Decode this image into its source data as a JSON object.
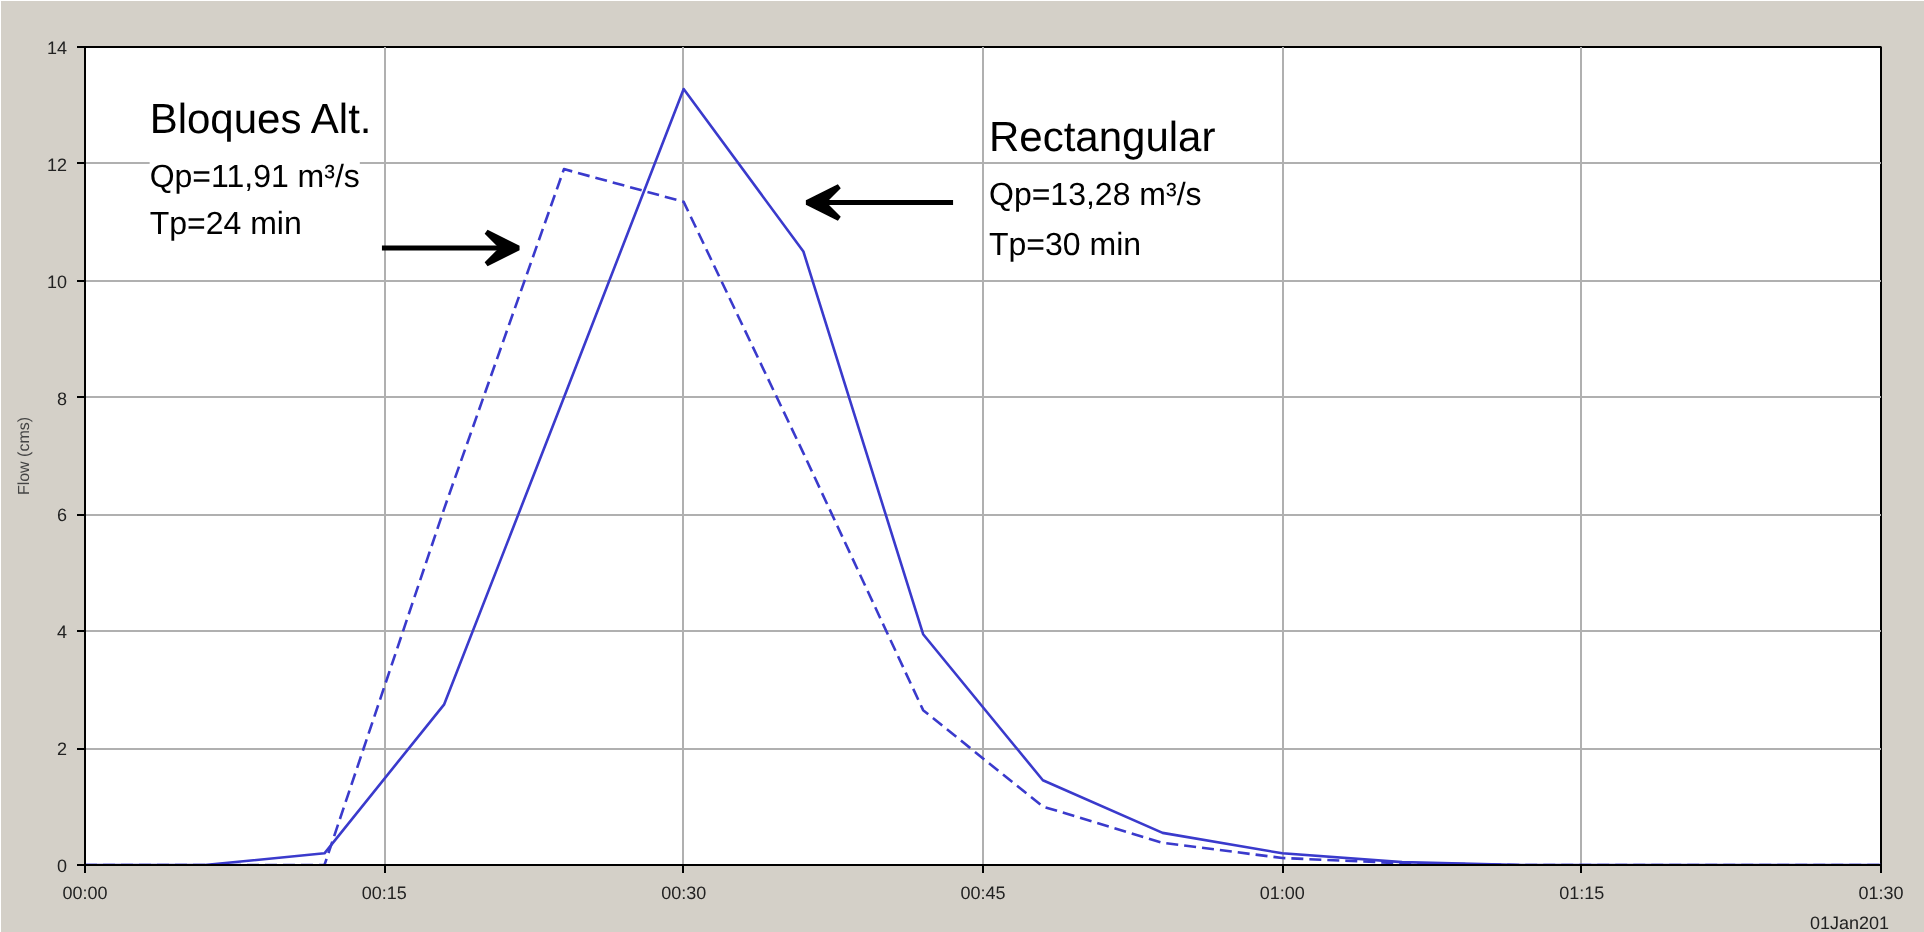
{
  "chart_data": {
    "type": "line",
    "ylabel": "Flow (cms)",
    "x": [
      0,
      0.1,
      0.2,
      0.3,
      0.4,
      0.5,
      0.6,
      0.7,
      0.8,
      0.9,
      1.0,
      1.1,
      1.2,
      1.3,
      1.4,
      1.5
    ],
    "series": [
      {
        "color": "#3a3acc",
        "line_style": "dashed",
        "values": [
          0,
          0,
          0,
          6.1,
          11.91,
          11.35,
          7.05,
          2.65,
          1.0,
          0.38,
          0.12,
          0.03,
          0,
          0,
          0,
          0
        ]
      },
      {
        "color": "#3a3acc",
        "line_style": "solid",
        "values": [
          0,
          0,
          0.2,
          2.75,
          8.0,
          13.28,
          10.5,
          3.95,
          1.45,
          0.55,
          0.2,
          0.05,
          0,
          0,
          0,
          0
        ]
      }
    ],
    "annotations": [
      "Bloques Alt.",
      "Qp=11,91 m³/s",
      "Tp=24 min",
      "Rectangular",
      "Qp=13,28 m³/s",
      "Tp=30 min",
      "01Jan201"
    ],
    "xlim": [
      0,
      1.5
    ],
    "ylim": [
      0,
      14
    ],
    "xticks": [
      {
        "value": 0,
        "label": "00:00"
      },
      {
        "value": 0.25,
        "label": "00:15"
      },
      {
        "value": 0.5,
        "label": "00:30"
      },
      {
        "value": 0.75,
        "label": "00:45"
      },
      {
        "value": 1.0,
        "label": "01:00"
      },
      {
        "value": 1.25,
        "label": "01:15"
      },
      {
        "value": 1.5,
        "label": "01:30"
      }
    ],
    "yticks": [
      0,
      2,
      4,
      6,
      8,
      10,
      12,
      14
    ],
    "grid": true,
    "marker": "none"
  }
}
